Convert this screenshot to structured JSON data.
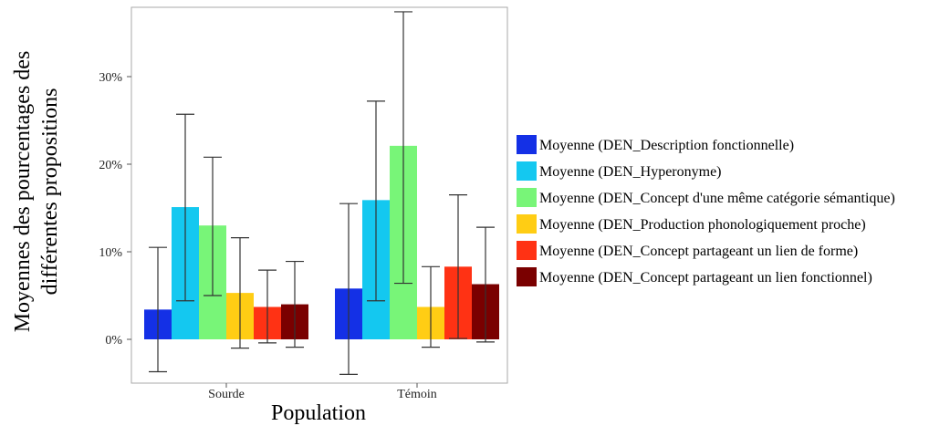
{
  "chart_data": {
    "type": "bar",
    "xlabel": "Population",
    "ylabel_lines": [
      "Moyennes des pourcentages des",
      "différentes propositions"
    ],
    "categories": [
      "Sourde",
      "Témoin"
    ],
    "ylim": [
      -0.05,
      0.38
    ],
    "yticks": [
      0,
      0.1,
      0.2,
      0.3
    ],
    "ytick_labels": [
      "0%",
      "10%",
      "20%",
      "30%"
    ],
    "grid": false,
    "legend_position": "right",
    "series": [
      {
        "name": "Moyenne (DEN_Description fonctionnelle)",
        "color": "#1430e6",
        "values": [
          0.034,
          0.058
        ],
        "err_low": [
          -0.037,
          -0.04
        ],
        "err_high": [
          0.105,
          0.155
        ]
      },
      {
        "name": "Moyenne (DEN_Hyperonyme)",
        "color": "#14c8f0",
        "values": [
          0.151,
          0.159
        ],
        "err_low": [
          0.044,
          0.044
        ],
        "err_high": [
          0.257,
          0.272
        ]
      },
      {
        "name": "Moyenne (DEN_Concept d'une même catégorie sémantique)",
        "color": "#78f578",
        "values": [
          0.13,
          0.221
        ],
        "err_low": [
          0.05,
          0.064
        ],
        "err_high": [
          0.208,
          0.374
        ]
      },
      {
        "name": "Moyenne (DEN_Production phonologiquement proche)",
        "color": "#ffcd14",
        "values": [
          0.053,
          0.037
        ],
        "err_low": [
          -0.01,
          -0.009
        ],
        "err_high": [
          0.116,
          0.083
        ]
      },
      {
        "name": "Moyenne (DEN_Concept partageant un lien de forme)",
        "color": "#ff3214",
        "values": [
          0.037,
          0.083
        ],
        "err_low": [
          -0.004,
          0.001
        ],
        "err_high": [
          0.079,
          0.165
        ]
      },
      {
        "name": "Moyenne (DEN_Concept partageant un lien fonctionnel)",
        "color": "#7a0000",
        "values": [
          0.04,
          0.063
        ],
        "err_low": [
          -0.009,
          -0.003
        ],
        "err_high": [
          0.089,
          0.128
        ]
      }
    ]
  }
}
